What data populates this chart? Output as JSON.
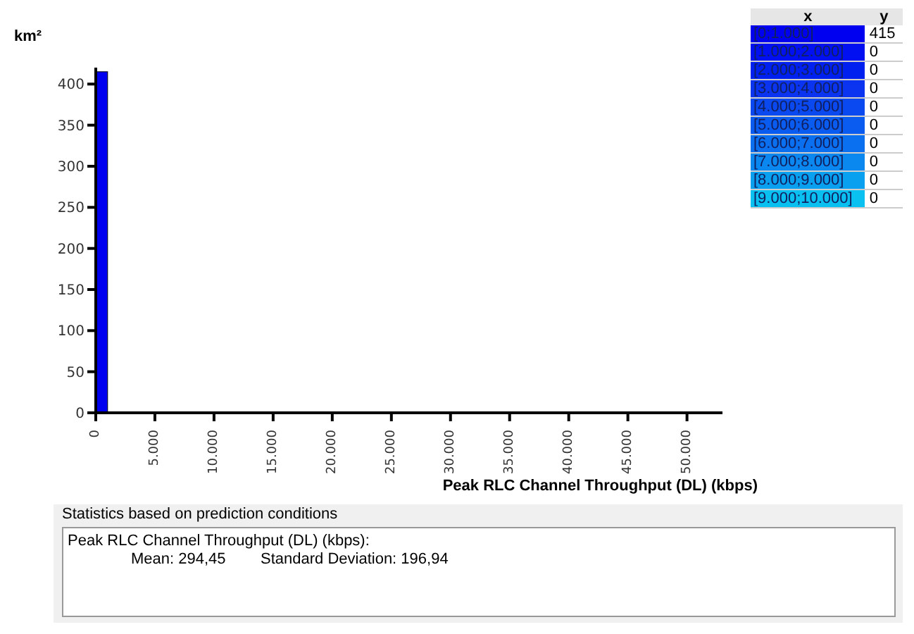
{
  "chart_data": {
    "type": "histogram",
    "bins": [
      0,
      1000,
      2000,
      3000,
      4000,
      5000,
      6000,
      7000,
      8000,
      9000,
      10000
    ],
    "values": [
      415,
      0,
      0,
      0,
      0,
      0,
      0,
      0,
      0,
      0
    ],
    "colors": [
      "#0000f0",
      "#0010f0",
      "#0020f0",
      "#0a34f0",
      "#0a48f0",
      "#0a5cf0",
      "#0a70f0",
      "#0a88f0",
      "#0aa0f0",
      "#0ac0f0"
    ],
    "xlabel": "Peak RLC Channel Throughput (DL) (kbps)",
    "ylabel": "km²",
    "xlim": [
      0,
      53000
    ],
    "xticks": [
      0,
      {
        "value": 5000,
        "label": "5.000"
      },
      {
        "value": 10000,
        "label": "10.000"
      },
      {
        "value": 15000,
        "label": "15.000"
      },
      {
        "value": 20000,
        "label": "20.000"
      },
      {
        "value": 25000,
        "label": "25.000"
      },
      {
        "value": 30000,
        "label": "30.000"
      },
      {
        "value": 35000,
        "label": "35.000"
      },
      {
        "value": 40000,
        "label": "40.000"
      },
      {
        "value": 45000,
        "label": "45.000"
      },
      {
        "value": 50000,
        "label": "50.000"
      }
    ],
    "ylim": [
      0,
      420
    ],
    "yticks": [
      0,
      50,
      100,
      150,
      200,
      250,
      300,
      350,
      400
    ],
    "grid": false,
    "annotations": [
      "x",
      "y",
      "Statistics based on prediction conditions",
      "Peak RLC Channel Throughput (DL) (kbps):",
      "Mean: 294,45",
      "Standard Deviation: 196,94",
      "[0;1.000]",
      "[1.000;2.000]",
      "[2.000;3.000]",
      "[3.000;4.000]",
      "[4.000;5.000]",
      "[5.000;6.000]",
      "[6.000;7.000]",
      "[7.000;8.000]",
      "[8.000;9.000]",
      "[9.000;10.000]",
      "415",
      "0",
      "0",
      "0",
      "0",
      "0",
      "0",
      "0",
      "0",
      "0"
    ]
  }
}
